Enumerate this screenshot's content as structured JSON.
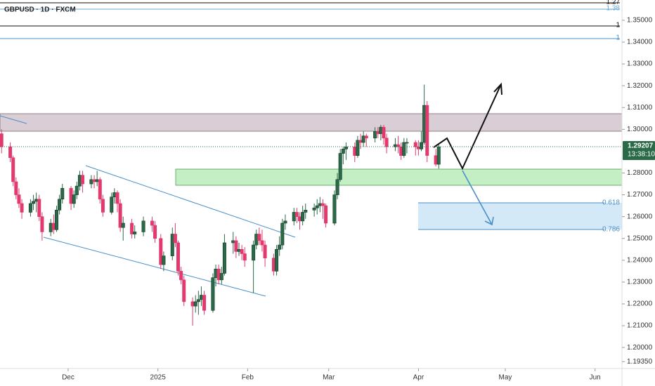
{
  "chart_data": {
    "type": "candlestick",
    "title": "GBPUSD · 1D · FXCM",
    "up_color": "#2a6a48",
    "down_color": "#e23a6e",
    "xlim": [
      6.46,
      221.3
    ],
    "xticks": [
      {
        "value": 30,
        "label": "Dec"
      },
      {
        "value": 61,
        "label": "2025"
      },
      {
        "value": 92,
        "label": "Feb"
      },
      {
        "value": 120,
        "label": "Mar"
      },
      {
        "value": 151,
        "label": "Apr"
      },
      {
        "value": 181,
        "label": "May"
      },
      {
        "value": 212,
        "label": "Jun"
      }
    ],
    "ylim": [
      1.1904,
      1.3593
    ],
    "yticks": [
      {
        "value": 1.1935,
        "label": "1.19350"
      },
      {
        "value": 1.2,
        "label": "1.20000"
      },
      {
        "value": 1.21,
        "label": "1.21000"
      },
      {
        "value": 1.22,
        "label": "1.22000"
      },
      {
        "value": 1.23,
        "label": "1.23000"
      },
      {
        "value": 1.24,
        "label": "1.24000"
      },
      {
        "value": 1.25,
        "label": "1.25000"
      },
      {
        "value": 1.26,
        "label": "1.26000"
      },
      {
        "value": 1.27,
        "label": "1.27000"
      },
      {
        "value": 1.28,
        "label": "1.28000"
      },
      {
        "value": 1.3,
        "label": "1.30000"
      },
      {
        "value": 1.31,
        "label": "1.31000"
      },
      {
        "value": 1.32,
        "label": "1.32000"
      },
      {
        "value": 1.33,
        "label": "1.33000"
      },
      {
        "value": 1.34,
        "label": "1.34000"
      },
      {
        "value": 1.35,
        "label": "1.35000"
      }
    ],
    "last_price": 1.29207,
    "countdown": "13:38:10",
    "level_labels": [
      1.27,
      1.38,
      1,
      1
    ],
    "zone_labels": [
      0.618,
      0.786
    ],
    "candles": [
      [
        7,
        1.298,
        1.3,
        1.289,
        1.292
      ],
      [
        10,
        1.292,
        1.294,
        1.285,
        1.287
      ],
      [
        11,
        1.287,
        1.288,
        1.274,
        1.276
      ],
      [
        12,
        1.276,
        1.278,
        1.268,
        1.27
      ],
      [
        13,
        1.27,
        1.273,
        1.264,
        1.266
      ],
      [
        14,
        1.266,
        1.268,
        1.259,
        1.262
      ],
      [
        17,
        1.262,
        1.268,
        1.26,
        1.266
      ],
      [
        18,
        1.266,
        1.27,
        1.263,
        1.267
      ],
      [
        19,
        1.267,
        1.271,
        1.262,
        1.268
      ],
      [
        20,
        1.268,
        1.27,
        1.258,
        1.26
      ],
      [
        21,
        1.26,
        1.262,
        1.249,
        1.253
      ],
      [
        24,
        1.253,
        1.259,
        1.251,
        1.257
      ],
      [
        25,
        1.257,
        1.261,
        1.252,
        1.254
      ],
      [
        26,
        1.254,
        1.265,
        1.253,
        1.263
      ],
      [
        27,
        1.263,
        1.27,
        1.261,
        1.268
      ],
      [
        28,
        1.268,
        1.275,
        1.266,
        1.273
      ],
      [
        31,
        1.273,
        1.274,
        1.263,
        1.266
      ],
      [
        32,
        1.266,
        1.272,
        1.264,
        1.27
      ],
      [
        33,
        1.27,
        1.276,
        1.268,
        1.274
      ],
      [
        34,
        1.274,
        1.281,
        1.272,
        1.279
      ],
      [
        35,
        1.279,
        1.281,
        1.271,
        1.275
      ],
      [
        38,
        1.275,
        1.279,
        1.273,
        1.277
      ],
      [
        39,
        1.277,
        1.279,
        1.273,
        1.276
      ],
      [
        40,
        1.276,
        1.281,
        1.274,
        1.277
      ],
      [
        41,
        1.277,
        1.278,
        1.266,
        1.268
      ],
      [
        42,
        1.268,
        1.27,
        1.26,
        1.262
      ],
      [
        45,
        1.262,
        1.271,
        1.261,
        1.269
      ],
      [
        46,
        1.269,
        1.273,
        1.266,
        1.271
      ],
      [
        47,
        1.271,
        1.272,
        1.262,
        1.266
      ],
      [
        48,
        1.266,
        1.268,
        1.253,
        1.255
      ],
      [
        49,
        1.255,
        1.26,
        1.249,
        1.257
      ],
      [
        52,
        1.257,
        1.259,
        1.25,
        1.252
      ],
      [
        53,
        1.252,
        1.256,
        1.25,
        1.253
      ],
      [
        56,
        1.253,
        1.26,
        1.251,
        1.258
      ],
      [
        59,
        1.258,
        1.26,
        1.253,
        1.256
      ],
      [
        60,
        1.256,
        1.258,
        1.248,
        1.25
      ],
      [
        62,
        1.25,
        1.252,
        1.236,
        1.238
      ],
      [
        63,
        1.238,
        1.244,
        1.235,
        1.242
      ],
      [
        66,
        1.242,
        1.255,
        1.24,
        1.252
      ],
      [
        67,
        1.252,
        1.257,
        1.246,
        1.248
      ],
      [
        68,
        1.248,
        1.249,
        1.233,
        1.235
      ],
      [
        69,
        1.235,
        1.237,
        1.229,
        1.231
      ],
      [
        70,
        1.231,
        1.233,
        1.219,
        1.221
      ],
      [
        73,
        1.221,
        1.223,
        1.21,
        1.219
      ],
      [
        74,
        1.219,
        1.224,
        1.216,
        1.221
      ],
      [
        75,
        1.221,
        1.226,
        1.215,
        1.222
      ],
      [
        76,
        1.222,
        1.228,
        1.219,
        1.224
      ],
      [
        77,
        1.224,
        1.226,
        1.215,
        1.217
      ],
      [
        80,
        1.217,
        1.234,
        1.216,
        1.232
      ],
      [
        81,
        1.232,
        1.238,
        1.228,
        1.236
      ],
      [
        82,
        1.236,
        1.238,
        1.229,
        1.231
      ],
      [
        83,
        1.231,
        1.237,
        1.229,
        1.234
      ],
      [
        84,
        1.234,
        1.252,
        1.233,
        1.248
      ],
      [
        87,
        1.248,
        1.253,
        1.243,
        1.249
      ],
      [
        88,
        1.249,
        1.251,
        1.241,
        1.244
      ],
      [
        89,
        1.244,
        1.248,
        1.242,
        1.245
      ],
      [
        90,
        1.245,
        1.247,
        1.24,
        1.243
      ],
      [
        91,
        1.243,
        1.246,
        1.237,
        1.24
      ],
      [
        94,
        1.24,
        1.249,
        1.225,
        1.247
      ],
      [
        95,
        1.247,
        1.254,
        1.245,
        1.252
      ],
      [
        96,
        1.252,
        1.255,
        1.247,
        1.249
      ],
      [
        97,
        1.249,
        1.254,
        1.244,
        1.247
      ],
      [
        98,
        1.247,
        1.249,
        1.237,
        1.241
      ],
      [
        101,
        1.241,
        1.243,
        1.233,
        1.235
      ],
      [
        102,
        1.235,
        1.247,
        1.233,
        1.245
      ],
      [
        103,
        1.245,
        1.251,
        1.242,
        1.247
      ],
      [
        104,
        1.247,
        1.259,
        1.245,
        1.257
      ],
      [
        105,
        1.257,
        1.261,
        1.254,
        1.258
      ],
      [
        108,
        1.258,
        1.264,
        1.256,
        1.262
      ],
      [
        109,
        1.262,
        1.264,
        1.257,
        1.26
      ],
      [
        110,
        1.26,
        1.262,
        1.254,
        1.258
      ],
      [
        111,
        1.258,
        1.265,
        1.256,
        1.262
      ],
      [
        112,
        1.262,
        1.266,
        1.259,
        1.263
      ],
      [
        115,
        1.263,
        1.266,
        1.26,
        1.264
      ],
      [
        116,
        1.264,
        1.268,
        1.261,
        1.265
      ],
      [
        117,
        1.265,
        1.269,
        1.262,
        1.266
      ],
      [
        118,
        1.266,
        1.268,
        1.259,
        1.265
      ],
      [
        119,
        1.265,
        1.266,
        1.255,
        1.257
      ],
      [
        122,
        1.257,
        1.272,
        1.256,
        1.27
      ],
      [
        123,
        1.27,
        1.28,
        1.268,
        1.277
      ],
      [
        124,
        1.277,
        1.291,
        1.276,
        1.289
      ],
      [
        125,
        1.289,
        1.292,
        1.284,
        1.291
      ],
      [
        126,
        1.291,
        1.294,
        1.286,
        1.292
      ],
      [
        129,
        1.292,
        1.294,
        1.285,
        1.288
      ],
      [
        130,
        1.288,
        1.297,
        1.287,
        1.295
      ],
      [
        131,
        1.295,
        1.298,
        1.291,
        1.294
      ],
      [
        132,
        1.294,
        1.299,
        1.292,
        1.297
      ],
      [
        133,
        1.297,
        1.298,
        1.292,
        1.296
      ],
      [
        136,
        1.296,
        1.301,
        1.294,
        1.299
      ],
      [
        137,
        1.299,
        1.301,
        1.296,
        1.298
      ],
      [
        138,
        1.298,
        1.302,
        1.295,
        1.301
      ],
      [
        139,
        1.301,
        1.302,
        1.293,
        1.296
      ],
      [
        140,
        1.296,
        1.298,
        1.289,
        1.292
      ],
      [
        143,
        1.292,
        1.296,
        1.29,
        1.293
      ],
      [
        144,
        1.293,
        1.297,
        1.289,
        1.292
      ],
      [
        145,
        1.292,
        1.294,
        1.286,
        1.288
      ],
      [
        146,
        1.288,
        1.296,
        1.287,
        1.294
      ],
      [
        147,
        1.294,
        1.296,
        1.289,
        1.294
      ],
      [
        150,
        1.294,
        1.295,
        1.288,
        1.292
      ],
      [
        151,
        1.292,
        1.295,
        1.288,
        1.291
      ],
      [
        152,
        1.291,
        1.299,
        1.29,
        1.294
      ],
      [
        153,
        1.294,
        1.3205,
        1.293,
        1.311
      ],
      [
        154,
        1.311,
        1.313,
        1.285,
        1.288
      ],
      [
        157,
        1.288,
        1.291,
        1.283,
        1.284
      ],
      [
        158,
        1.284,
        1.293,
        1.282,
        1.292
      ]
    ]
  }
}
